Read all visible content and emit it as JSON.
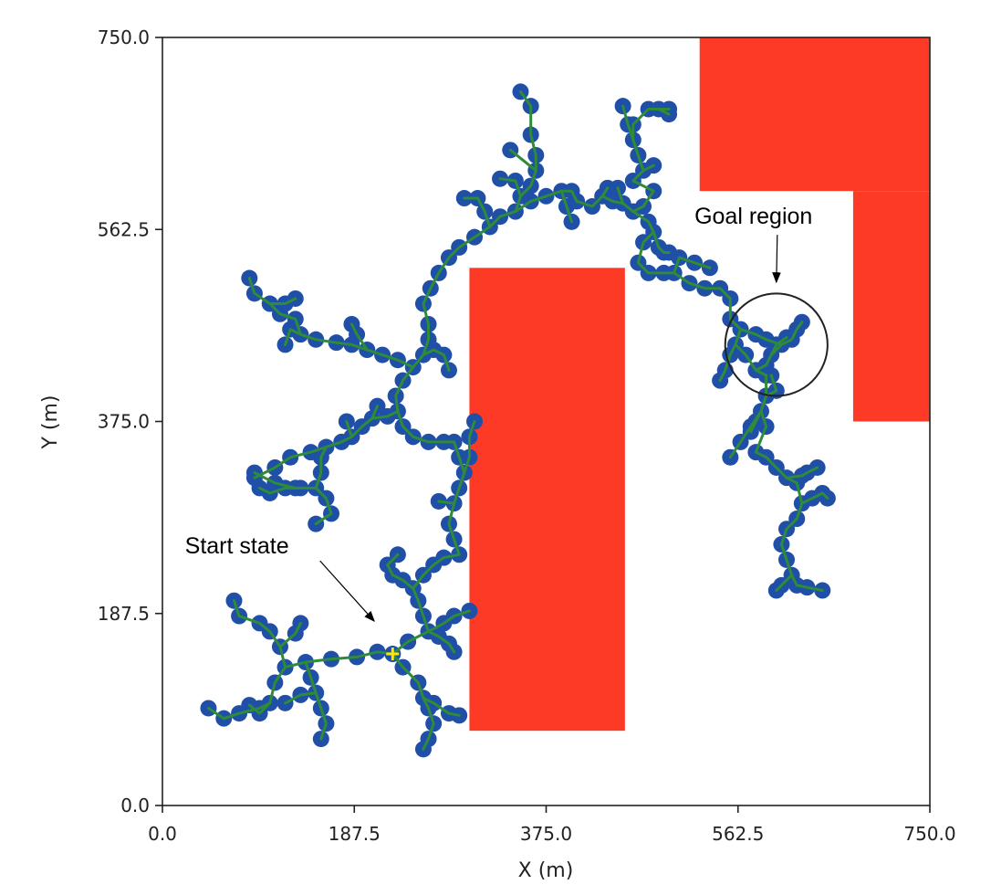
{
  "chart_data": {
    "type": "scatter",
    "title": "",
    "xlabel": "X (m)",
    "ylabel": "Y (m)",
    "xlim": [
      0,
      750
    ],
    "ylim": [
      0,
      750
    ],
    "xticks": [
      "0.0",
      "187.5",
      "375.0",
      "562.5",
      "750.0"
    ],
    "yticks": [
      "0.0",
      "187.5",
      "375.0",
      "562.5",
      "750.0"
    ],
    "grid": false,
    "colors": {
      "obstacle": "#fc3a25",
      "node": "#1f4fa6",
      "edge": "#2e8b3a",
      "start": "#ffe600",
      "circle": "#222222"
    },
    "obstacles": [
      {
        "x0": 300,
        "x1": 452,
        "y0": 73,
        "y1": 525
      },
      {
        "x0": 525,
        "x1": 750,
        "y0": 600,
        "y1": 750
      },
      {
        "x0": 675,
        "x1": 750,
        "y0": 375,
        "y1": 600
      }
    ],
    "start": {
      "x": 225,
      "y": 148
    },
    "goal": {
      "x": 600,
      "y": 450,
      "r": 50
    },
    "annotations": [
      {
        "text": "Start state",
        "x": 22,
        "y": 246,
        "point_x": 207,
        "point_y": 180
      },
      {
        "text": "Goal region",
        "x": 520,
        "y": 568,
        "point_x": 600,
        "point_y": 511
      }
    ],
    "branches": [
      [
        [
          225,
          148
        ],
        [
          210,
          150
        ],
        [
          190,
          145
        ],
        [
          165,
          143
        ],
        [
          140,
          140
        ],
        [
          120,
          135
        ],
        [
          110,
          120
        ],
        [
          105,
          100
        ],
        [
          95,
          95
        ],
        [
          75,
          90
        ],
        [
          60,
          85
        ],
        [
          45,
          95
        ]
      ],
      [
        [
          105,
          100
        ],
        [
          95,
          90
        ],
        [
          85,
          98
        ]
      ],
      [
        [
          120,
          135
        ],
        [
          115,
          155
        ],
        [
          105,
          170
        ],
        [
          95,
          178
        ],
        [
          75,
          185
        ],
        [
          70,
          200
        ]
      ],
      [
        [
          115,
          155
        ],
        [
          130,
          168
        ],
        [
          135,
          178
        ]
      ],
      [
        [
          140,
          140
        ],
        [
          145,
          125
        ],
        [
          150,
          110
        ],
        [
          155,
          95
        ],
        [
          160,
          80
        ],
        [
          155,
          65
        ]
      ],
      [
        [
          150,
          110
        ],
        [
          135,
          108
        ],
        [
          120,
          100
        ]
      ],
      [
        [
          225,
          148
        ],
        [
          235,
          135
        ],
        [
          250,
          120
        ],
        [
          255,
          105
        ],
        [
          260,
          95
        ],
        [
          265,
          80
        ],
        [
          260,
          65
        ],
        [
          255,
          55
        ]
      ],
      [
        [
          255,
          105
        ],
        [
          265,
          100
        ],
        [
          280,
          90
        ],
        [
          290,
          88
        ]
      ],
      [
        [
          225,
          148
        ],
        [
          240,
          160
        ],
        [
          260,
          170
        ],
        [
          275,
          178
        ],
        [
          285,
          185
        ],
        [
          300,
          190
        ]
      ],
      [
        [
          260,
          170
        ],
        [
          255,
          185
        ],
        [
          250,
          200
        ],
        [
          245,
          212
        ],
        [
          255,
          225
        ],
        [
          265,
          235
        ],
        [
          275,
          242
        ],
        [
          290,
          245
        ]
      ],
      [
        [
          245,
          212
        ],
        [
          235,
          220
        ],
        [
          225,
          225
        ],
        [
          220,
          235
        ],
        [
          230,
          245
        ]
      ],
      [
        [
          260,
          170
        ],
        [
          270,
          165
        ],
        [
          280,
          158
        ],
        [
          285,
          150
        ]
      ],
      [
        [
          290,
          245
        ],
        [
          285,
          260
        ],
        [
          280,
          275
        ],
        [
          285,
          295
        ]
      ],
      [
        [
          285,
          295
        ],
        [
          270,
          297
        ]
      ],
      [
        [
          285,
          295
        ],
        [
          290,
          310
        ],
        [
          295,
          325
        ],
        [
          290,
          340
        ],
        [
          285,
          355
        ],
        [
          275,
          355
        ],
        [
          260,
          355
        ]
      ],
      [
        [
          295,
          325
        ],
        [
          300,
          340
        ],
        [
          300,
          360
        ],
        [
          305,
          375
        ]
      ],
      [
        [
          260,
          355
        ],
        [
          245,
          360
        ],
        [
          235,
          370
        ],
        [
          230,
          385
        ],
        [
          228,
          400
        ],
        [
          235,
          415
        ],
        [
          245,
          428
        ]
      ],
      [
        [
          230,
          385
        ],
        [
          220,
          380
        ],
        [
          205,
          378
        ],
        [
          195,
          370
        ],
        [
          185,
          360
        ],
        [
          175,
          355
        ],
        [
          160,
          350
        ],
        [
          145,
          345
        ],
        [
          125,
          340
        ],
        [
          110,
          330
        ],
        [
          90,
          320
        ]
      ],
      [
        [
          205,
          378
        ],
        [
          210,
          390
        ]
      ],
      [
        [
          185,
          360
        ],
        [
          180,
          375
        ]
      ],
      [
        [
          160,
          350
        ],
        [
          155,
          340
        ],
        [
          155,
          325
        ],
        [
          150,
          310
        ],
        [
          135,
          310
        ],
        [
          120,
          310
        ],
        [
          105,
          305
        ],
        [
          95,
          310
        ]
      ],
      [
        [
          150,
          310
        ],
        [
          160,
          300
        ],
        [
          165,
          285
        ],
        [
          150,
          275
        ]
      ],
      [
        [
          130,
          310
        ],
        [
          110,
          315
        ],
        [
          90,
          325
        ]
      ],
      [
        [
          245,
          428
        ],
        [
          255,
          440
        ],
        [
          265,
          445
        ],
        [
          275,
          440
        ],
        [
          280,
          425
        ]
      ],
      [
        [
          245,
          428
        ],
        [
          230,
          435
        ],
        [
          215,
          440
        ],
        [
          200,
          445
        ],
        [
          185,
          450
        ],
        [
          170,
          452
        ],
        [
          150,
          455
        ],
        [
          135,
          460
        ],
        [
          125,
          465
        ],
        [
          120,
          450
        ]
      ],
      [
        [
          200,
          445
        ],
        [
          190,
          460
        ],
        [
          185,
          470
        ]
      ],
      [
        [
          135,
          460
        ],
        [
          130,
          475
        ],
        [
          115,
          480
        ],
        [
          105,
          490
        ],
        [
          90,
          500
        ],
        [
          85,
          515
        ]
      ],
      [
        [
          105,
          490
        ],
        [
          120,
          490
        ],
        [
          130,
          495
        ]
      ],
      [
        [
          255,
          440
        ],
        [
          260,
          455
        ],
        [
          260,
          470
        ],
        [
          255,
          490
        ],
        [
          262,
          505
        ],
        [
          270,
          520
        ],
        [
          280,
          535
        ],
        [
          290,
          545
        ],
        [
          305,
          555
        ],
        [
          320,
          565
        ],
        [
          330,
          575
        ],
        [
          345,
          580
        ],
        [
          360,
          590
        ],
        [
          375,
          595
        ]
      ],
      [
        [
          320,
          565
        ],
        [
          315,
          580
        ],
        [
          308,
          593
        ],
        [
          295,
          593
        ]
      ],
      [
        [
          345,
          580
        ],
        [
          350,
          595
        ],
        [
          345,
          610
        ],
        [
          330,
          612
        ]
      ],
      [
        [
          350,
          595
        ],
        [
          360,
          605
        ],
        [
          365,
          620
        ],
        [
          365,
          635
        ],
        [
          360,
          655
        ],
        [
          360,
          683
        ],
        [
          350,
          697
        ]
      ],
      [
        [
          365,
          620
        ],
        [
          340,
          640
        ]
      ],
      [
        [
          375,
          595
        ],
        [
          390,
          600
        ],
        [
          395,
          585
        ],
        [
          400,
          570
        ]
      ],
      [
        [
          390,
          600
        ],
        [
          400,
          600
        ],
        [
          405,
          590
        ],
        [
          420,
          585
        ],
        [
          430,
          595
        ],
        [
          435,
          603
        ]
      ],
      [
        [
          430,
          595
        ],
        [
          440,
          590
        ],
        [
          450,
          588
        ],
        [
          460,
          580
        ]
      ],
      [
        [
          450,
          588
        ],
        [
          445,
          603
        ]
      ],
      [
        [
          460,
          580
        ],
        [
          470,
          585
        ],
        [
          480,
          600
        ],
        [
          460,
          610
        ],
        [
          470,
          620
        ],
        [
          465,
          635
        ],
        [
          460,
          650
        ],
        [
          460,
          665
        ],
        [
          475,
          680
        ],
        [
          485,
          680
        ],
        [
          495,
          680
        ]
      ],
      [
        [
          470,
          620
        ],
        [
          480,
          625
        ]
      ],
      [
        [
          460,
          650
        ],
        [
          455,
          665
        ],
        [
          450,
          683
        ]
      ],
      [
        [
          485,
          680
        ],
        [
          495,
          675
        ]
      ],
      [
        [
          460,
          580
        ],
        [
          475,
          570
        ],
        [
          480,
          560
        ],
        [
          485,
          545
        ],
        [
          490,
          540
        ],
        [
          495,
          540
        ]
      ],
      [
        [
          480,
          560
        ],
        [
          470,
          550
        ],
        [
          465,
          530
        ],
        [
          475,
          520
        ],
        [
          490,
          520
        ],
        [
          500,
          520
        ],
        [
          515,
          510
        ],
        [
          530,
          505
        ],
        [
          545,
          505
        ]
      ],
      [
        [
          500,
          520
        ],
        [
          505,
          535
        ],
        [
          520,
          530
        ],
        [
          535,
          525
        ]
      ],
      [
        [
          545,
          505
        ],
        [
          555,
          495
        ],
        [
          555,
          475
        ],
        [
          565,
          465
        ],
        [
          580,
          460
        ]
      ],
      [
        [
          565,
          465
        ],
        [
          560,
          450
        ],
        [
          555,
          440
        ],
        [
          550,
          425
        ],
        [
          545,
          415
        ]
      ],
      [
        [
          560,
          450
        ],
        [
          570,
          440
        ],
        [
          580,
          425
        ],
        [
          590,
          420
        ]
      ],
      [
        [
          580,
          425
        ],
        [
          590,
          430
        ],
        [
          595,
          440
        ],
        [
          600,
          450
        ],
        [
          610,
          457
        ]
      ],
      [
        [
          595,
          440
        ],
        [
          605,
          450
        ],
        [
          615,
          455
        ],
        [
          620,
          465
        ],
        [
          625,
          472
        ]
      ],
      [
        [
          605,
          450
        ],
        [
          590,
          455
        ],
        [
          580,
          460
        ]
      ],
      [
        [
          590,
          420
        ],
        [
          590,
          400
        ],
        [
          585,
          385
        ],
        [
          580,
          375
        ],
        [
          575,
          365
        ]
      ],
      [
        [
          590,
          400
        ],
        [
          600,
          405
        ],
        [
          595,
          420
        ]
      ],
      [
        [
          585,
          385
        ],
        [
          590,
          370
        ],
        [
          580,
          345
        ]
      ],
      [
        [
          585,
          385
        ],
        [
          575,
          370
        ],
        [
          565,
          355
        ],
        [
          555,
          340
        ]
      ],
      [
        [
          580,
          345
        ],
        [
          590,
          340
        ],
        [
          600,
          330
        ],
        [
          610,
          320
        ],
        [
          620,
          315
        ],
        [
          625,
          295
        ],
        [
          620,
          280
        ],
        [
          610,
          270
        ],
        [
          605,
          255
        ],
        [
          610,
          240
        ]
      ],
      [
        [
          610,
          320
        ],
        [
          625,
          322
        ],
        [
          630,
          325
        ],
        [
          640,
          330
        ]
      ],
      [
        [
          625,
          295
        ],
        [
          635,
          300
        ],
        [
          645,
          305
        ],
        [
          650,
          300
        ]
      ],
      [
        [
          605,
          255
        ],
        [
          610,
          240
        ],
        [
          615,
          225
        ],
        [
          620,
          215
        ],
        [
          630,
          213
        ],
        [
          645,
          210
        ]
      ],
      [
        [
          615,
          225
        ],
        [
          605,
          215
        ],
        [
          600,
          210
        ]
      ]
    ]
  }
}
